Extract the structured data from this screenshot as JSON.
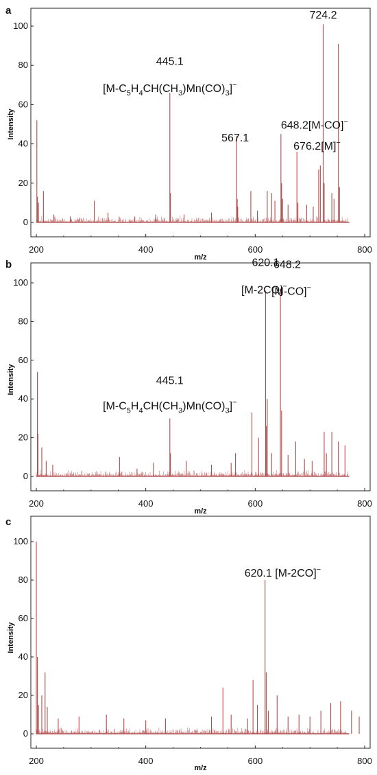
{
  "chart_data": [
    {
      "type": "line",
      "panel_label": "a",
      "xlabel": "m/z",
      "ylabel": "Intensity",
      "xlim": [
        195,
        805
      ],
      "ylim": [
        -2,
        108
      ],
      "x_ticks": [
        200,
        400,
        600,
        800
      ],
      "y_ticks": [
        0,
        20,
        40,
        60,
        80,
        100
      ],
      "color": "#b24a4a",
      "peaks": [
        {
          "x": 201,
          "y": 52
        },
        {
          "x": 202,
          "y": 13
        },
        {
          "x": 204,
          "y": 10
        },
        {
          "x": 213,
          "y": 16
        },
        {
          "x": 232,
          "y": 4
        },
        {
          "x": 262,
          "y": 3
        },
        {
          "x": 306,
          "y": 11
        },
        {
          "x": 331,
          "y": 5
        },
        {
          "x": 380,
          "y": 3
        },
        {
          "x": 418,
          "y": 4
        },
        {
          "x": 444,
          "y": 66
        },
        {
          "x": 445.1,
          "y": 15
        },
        {
          "x": 470,
          "y": 4
        },
        {
          "x": 520,
          "y": 5
        },
        {
          "x": 566,
          "y": 44
        },
        {
          "x": 567.1,
          "y": 12
        },
        {
          "x": 568,
          "y": 8
        },
        {
          "x": 592,
          "y": 16
        },
        {
          "x": 604,
          "y": 6
        },
        {
          "x": 622,
          "y": 16
        },
        {
          "x": 630,
          "y": 15
        },
        {
          "x": 636,
          "y": 11
        },
        {
          "x": 647,
          "y": 45
        },
        {
          "x": 648.2,
          "y": 20
        },
        {
          "x": 650,
          "y": 12
        },
        {
          "x": 660,
          "y": 9
        },
        {
          "x": 676.2,
          "y": 36
        },
        {
          "x": 678,
          "y": 10
        },
        {
          "x": 694,
          "y": 9
        },
        {
          "x": 706,
          "y": 8
        },
        {
          "x": 716,
          "y": 27
        },
        {
          "x": 719,
          "y": 29
        },
        {
          "x": 724.2,
          "y": 101
        },
        {
          "x": 726,
          "y": 20
        },
        {
          "x": 740,
          "y": 15
        },
        {
          "x": 744,
          "y": 12
        },
        {
          "x": 752,
          "y": 91
        },
        {
          "x": 754,
          "y": 18
        }
      ],
      "annotations": [
        {
          "text": "724.2",
          "x": 724.2,
          "y": 101
        },
        {
          "text": "445.1",
          "x": 444,
          "y": 69
        },
        {
          "text": "[M-C5H4CH(CH3)Mn(CO)3]−",
          "x": 444,
          "y": 63
        },
        {
          "text": "567.1",
          "x": 566,
          "y": 42
        },
        {
          "text": "648.2[M-CO]−",
          "x": 647,
          "y": 45
        },
        {
          "text": "676.2[M]−",
          "x": 676.2,
          "y": 36
        }
      ]
    },
    {
      "type": "line",
      "panel_label": "b",
      "xlabel": "m/z",
      "ylabel": "Intensity",
      "xlim": [
        195,
        805
      ],
      "ylim": [
        -2,
        108
      ],
      "x_ticks": [
        200,
        400,
        600,
        800
      ],
      "y_ticks": [
        0,
        20,
        40,
        60,
        80,
        100
      ],
      "color": "#b24a4a",
      "peaks": [
        {
          "x": 202,
          "y": 54
        },
        {
          "x": 203,
          "y": 22
        },
        {
          "x": 210,
          "y": 15
        },
        {
          "x": 218,
          "y": 8
        },
        {
          "x": 230,
          "y": 6
        },
        {
          "x": 352,
          "y": 10
        },
        {
          "x": 384,
          "y": 4
        },
        {
          "x": 414,
          "y": 7
        },
        {
          "x": 444,
          "y": 30
        },
        {
          "x": 445.1,
          "y": 12
        },
        {
          "x": 474,
          "y": 8
        },
        {
          "x": 520,
          "y": 6
        },
        {
          "x": 556,
          "y": 7
        },
        {
          "x": 564,
          "y": 12
        },
        {
          "x": 594,
          "y": 33
        },
        {
          "x": 606,
          "y": 20
        },
        {
          "x": 619,
          "y": 96
        },
        {
          "x": 620.1,
          "y": 26
        },
        {
          "x": 622,
          "y": 40
        },
        {
          "x": 630,
          "y": 12
        },
        {
          "x": 646,
          "y": 97
        },
        {
          "x": 648.2,
          "y": 34
        },
        {
          "x": 660,
          "y": 11
        },
        {
          "x": 674,
          "y": 18
        },
        {
          "x": 690,
          "y": 9
        },
        {
          "x": 704,
          "y": 8
        },
        {
          "x": 726,
          "y": 23
        },
        {
          "x": 730,
          "y": 12
        },
        {
          "x": 740,
          "y": 23
        },
        {
          "x": 752,
          "y": 18
        },
        {
          "x": 764,
          "y": 16
        }
      ],
      "annotations": [
        {
          "text": "620.1",
          "x": 619,
          "y": 104
        },
        {
          "text": "[M-2CO]−",
          "x": 619,
          "y": 98
        },
        {
          "text": "648.2",
          "x": 646,
          "y": 104
        },
        {
          "text": "[M-CO]−",
          "x": 646,
          "y": 98
        },
        {
          "text": "445.1",
          "x": 444,
          "y": 37
        },
        {
          "text": "[M-C5H4CH(CH3)Mn(CO)3]−",
          "x": 444,
          "y": 31
        }
      ]
    },
    {
      "type": "line",
      "panel_label": "c",
      "xlabel": "m/z",
      "ylabel": "Intensity",
      "xlim": [
        195,
        805
      ],
      "ylim": [
        -2,
        108
      ],
      "x_ticks": [
        200,
        400,
        600,
        800
      ],
      "y_ticks": [
        0,
        20,
        40,
        60,
        80,
        100
      ],
      "color": "#b24a4a",
      "peaks": [
        {
          "x": 200,
          "y": 100
        },
        {
          "x": 202,
          "y": 40
        },
        {
          "x": 204,
          "y": 15
        },
        {
          "x": 210,
          "y": 20
        },
        {
          "x": 216,
          "y": 32
        },
        {
          "x": 220,
          "y": 14
        },
        {
          "x": 240,
          "y": 8
        },
        {
          "x": 278,
          "y": 9
        },
        {
          "x": 328,
          "y": 10
        },
        {
          "x": 360,
          "y": 8
        },
        {
          "x": 400,
          "y": 7
        },
        {
          "x": 436,
          "y": 8
        },
        {
          "x": 520,
          "y": 9
        },
        {
          "x": 541,
          "y": 24
        },
        {
          "x": 556,
          "y": 10
        },
        {
          "x": 586,
          "y": 8
        },
        {
          "x": 596,
          "y": 28
        },
        {
          "x": 604,
          "y": 15
        },
        {
          "x": 618,
          "y": 80
        },
        {
          "x": 620.1,
          "y": 32
        },
        {
          "x": 624,
          "y": 12
        },
        {
          "x": 640,
          "y": 20
        },
        {
          "x": 660,
          "y": 9
        },
        {
          "x": 680,
          "y": 10
        },
        {
          "x": 700,
          "y": 9
        },
        {
          "x": 720,
          "y": 12
        },
        {
          "x": 738,
          "y": 16
        },
        {
          "x": 756,
          "y": 17
        },
        {
          "x": 776,
          "y": 12
        },
        {
          "x": 790,
          "y": 9
        }
      ],
      "annotations": [
        {
          "text": "620.1 [M-2CO]−",
          "x": 618,
          "y": 80
        }
      ]
    }
  ]
}
